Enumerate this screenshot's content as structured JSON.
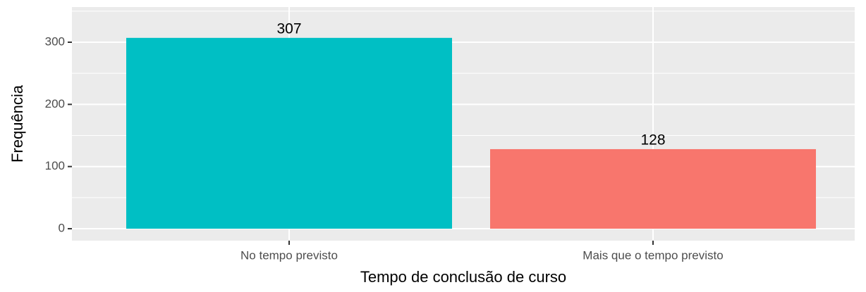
{
  "chart_data": {
    "type": "bar",
    "categories": [
      "No tempo previsto",
      "Mais que o tempo previsto"
    ],
    "values": [
      307,
      128
    ],
    "colors": [
      "#00BFC4",
      "#F8766D"
    ],
    "xlabel": "Tempo de conclusão de curso",
    "ylabel": "Frequência",
    "ylim": [
      -19.2,
      356.6
    ],
    "yticks": [
      0,
      100,
      200,
      300
    ],
    "minor_yticks": [
      50,
      150,
      250,
      350
    ],
    "grid": true
  }
}
